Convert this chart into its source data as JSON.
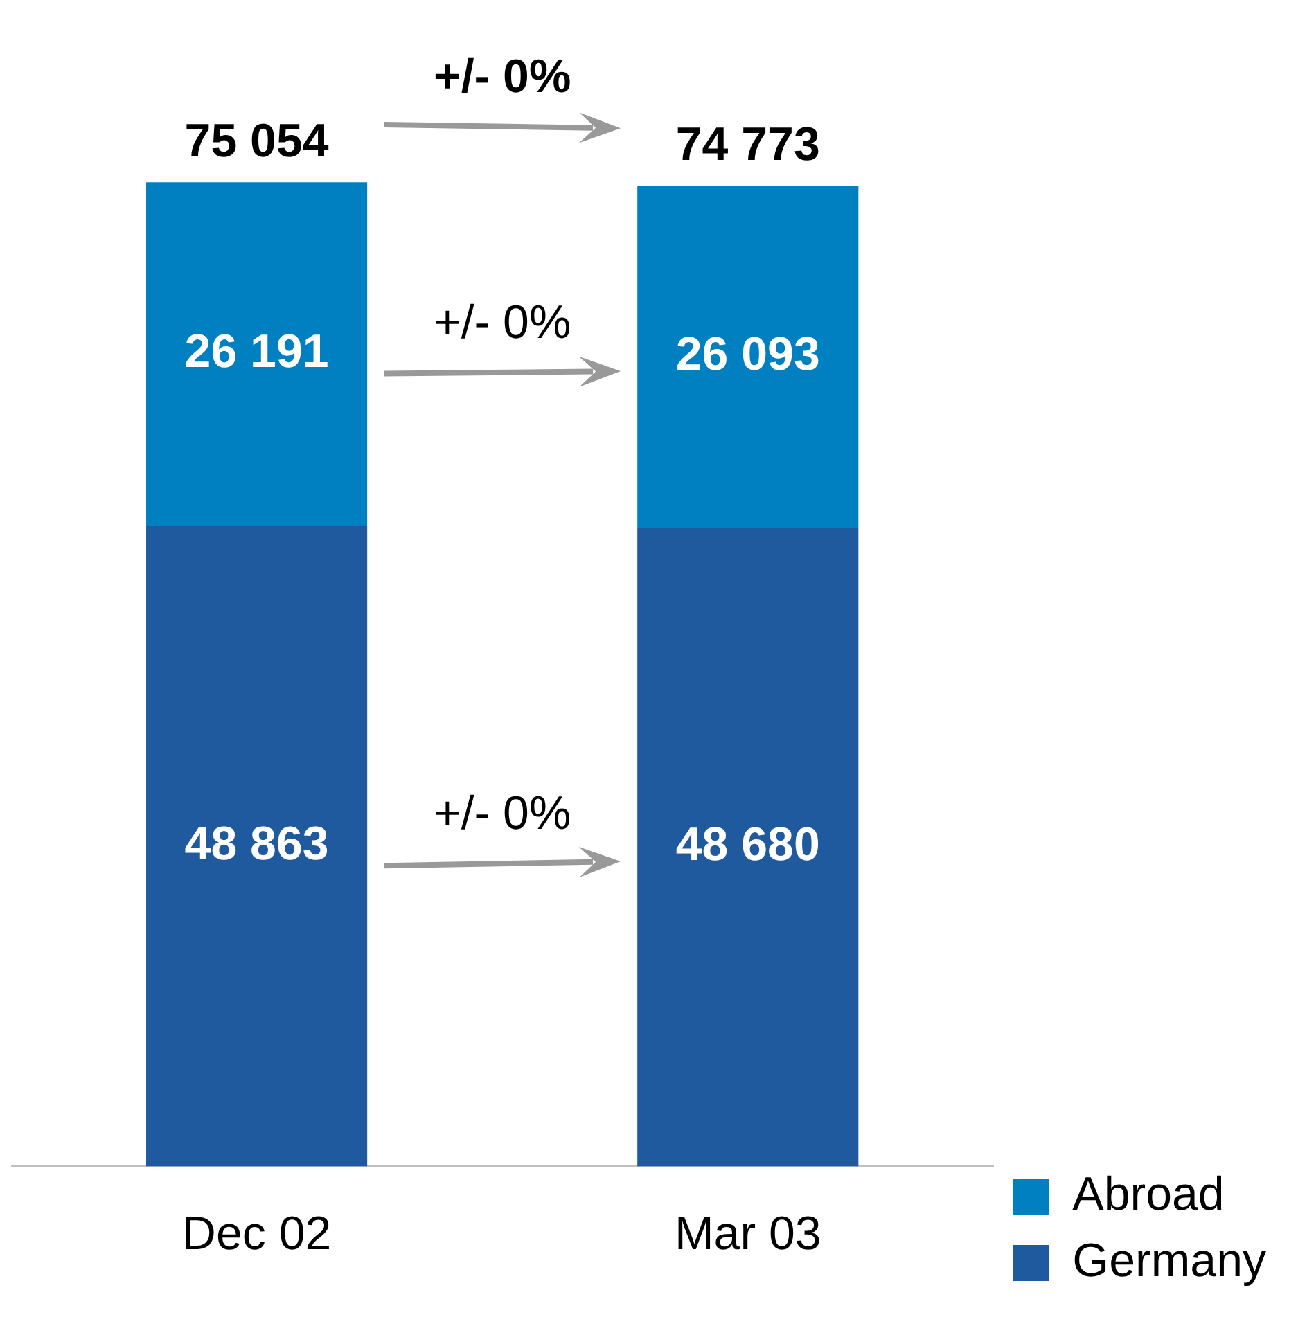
{
  "chart_data": {
    "type": "bar",
    "stacked": true,
    "categories": [
      "Dec 02",
      "Mar 03"
    ],
    "series": [
      {
        "name": "Germany",
        "color": "#1f5a9e",
        "values": [
          48863,
          48680
        ],
        "value_labels": [
          "48 863",
          "48 680"
        ]
      },
      {
        "name": "Abroad",
        "color": "#0080c0",
        "values": [
          26191,
          26093
        ],
        "value_labels": [
          "26 191",
          "26 093"
        ]
      }
    ],
    "totals": [
      "75 054",
      "74 773"
    ],
    "annotations": [
      "+/- 0%",
      "+/- 0%",
      "+/- 0%"
    ],
    "legend": "right",
    "grid": false
  }
}
